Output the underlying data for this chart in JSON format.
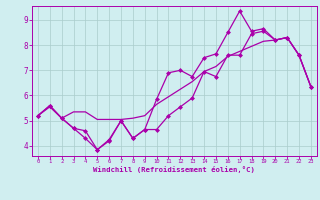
{
  "xlabel": "Windchill (Refroidissement éolien,°C)",
  "bg_color": "#d0eef0",
  "plot_bg_color": "#d0eef0",
  "line_color": "#aa00aa",
  "grid_color": "#aacccc",
  "xlabel_bg": "#8844aa",
  "xlim": [
    -0.5,
    23.5
  ],
  "ylim": [
    3.6,
    9.55
  ],
  "yticks": [
    4,
    5,
    6,
    7,
    8,
    9
  ],
  "xticks": [
    0,
    1,
    2,
    3,
    4,
    5,
    6,
    7,
    8,
    9,
    10,
    11,
    12,
    13,
    14,
    15,
    16,
    17,
    18,
    19,
    20,
    21,
    22,
    23
  ],
  "line1_x": [
    0,
    1,
    2,
    3,
    4,
    5,
    6,
    7,
    8,
    9,
    10,
    11,
    12,
    13,
    14,
    15,
    16,
    17,
    18,
    19,
    20,
    21,
    22,
    23
  ],
  "line1_y": [
    5.2,
    5.6,
    5.1,
    4.7,
    4.6,
    3.85,
    4.25,
    5.0,
    4.3,
    4.65,
    5.85,
    6.9,
    7.0,
    6.75,
    7.5,
    7.65,
    8.5,
    9.35,
    8.55,
    8.65,
    8.2,
    8.3,
    7.6,
    6.35
  ],
  "line2_x": [
    0,
    1,
    2,
    3,
    4,
    5,
    6,
    7,
    8,
    9,
    10,
    11,
    12,
    13,
    14,
    15,
    16,
    17,
    18,
    19,
    20,
    21,
    22,
    23
  ],
  "line2_y": [
    5.2,
    5.55,
    5.1,
    5.35,
    5.35,
    5.05,
    5.05,
    5.05,
    5.1,
    5.2,
    5.65,
    5.95,
    6.25,
    6.55,
    6.95,
    7.15,
    7.55,
    7.75,
    7.95,
    8.15,
    8.2,
    8.3,
    7.6,
    6.35
  ],
  "line3_x": [
    0,
    1,
    2,
    3,
    4,
    5,
    6,
    7,
    8,
    9,
    10,
    11,
    12,
    13,
    14,
    15,
    16,
    17,
    18,
    19,
    20,
    21,
    22,
    23
  ],
  "line3_y": [
    5.2,
    5.6,
    5.1,
    4.7,
    4.3,
    3.85,
    4.2,
    5.0,
    4.3,
    4.65,
    4.65,
    5.2,
    5.55,
    5.9,
    6.95,
    6.75,
    7.6,
    7.6,
    8.45,
    8.55,
    8.2,
    8.3,
    7.6,
    6.35
  ],
  "markersize": 2.5,
  "linewidth": 0.9
}
